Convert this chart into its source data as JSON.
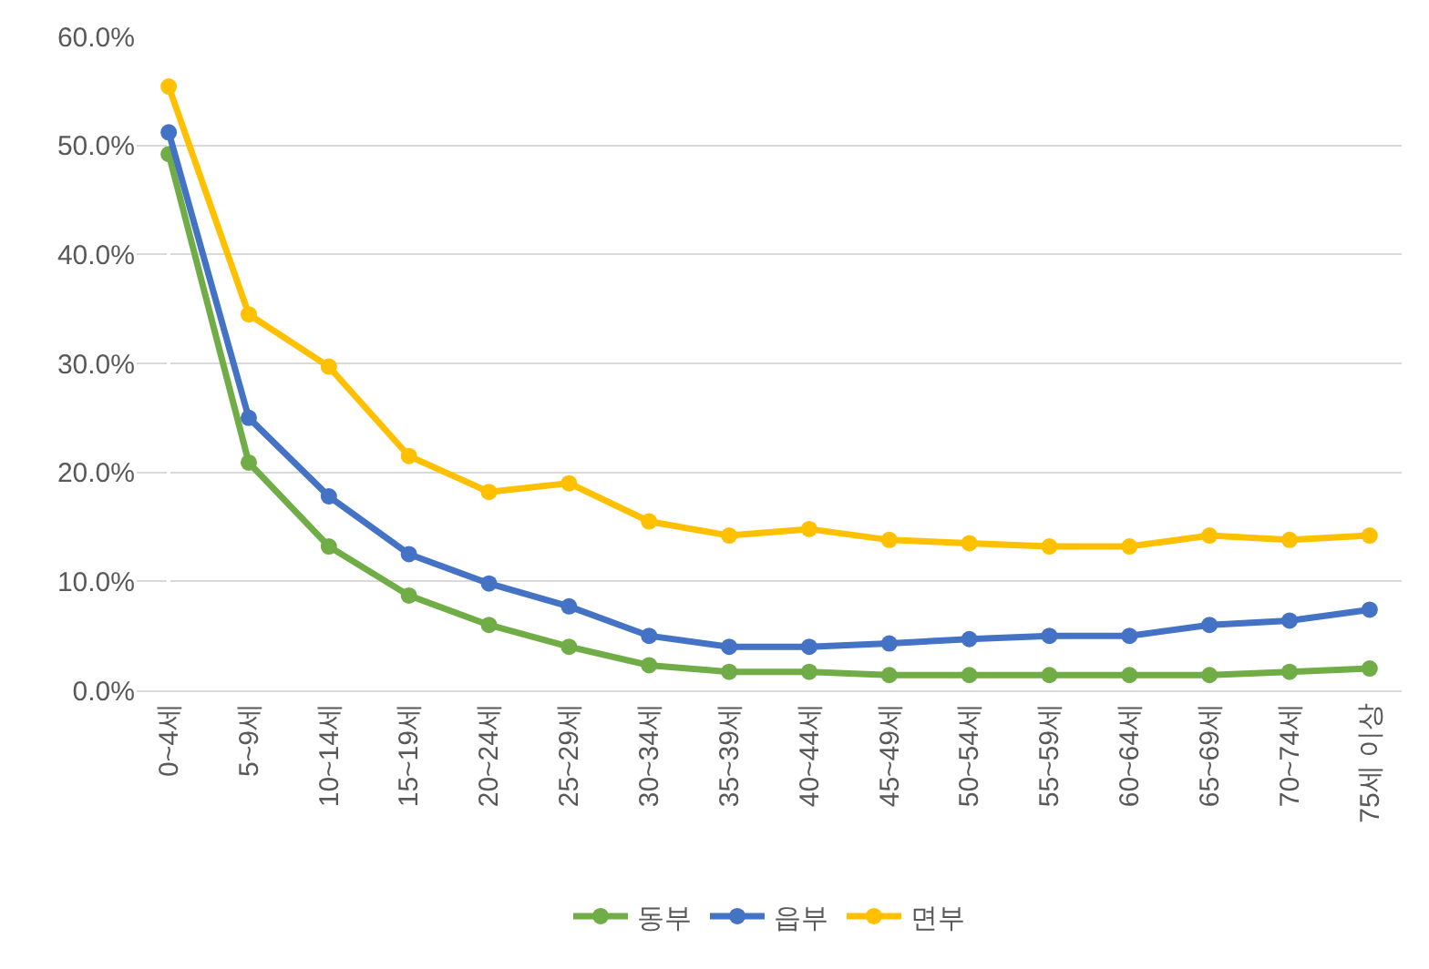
{
  "chart_data": {
    "type": "line",
    "categories": [
      "0~4세",
      "5~9세",
      "10~14세",
      "15~19세",
      "20~24세",
      "25~29세",
      "30~34세",
      "35~39세",
      "40~44세",
      "45~49세",
      "50~54세",
      "55~59세",
      "60~64세",
      "65~69세",
      "70~74세",
      "75세 이상"
    ],
    "series": [
      {
        "name": "동부",
        "color": "#70ad47",
        "values": [
          49.2,
          20.9,
          13.2,
          8.7,
          6.0,
          4.0,
          2.3,
          1.7,
          1.7,
          1.4,
          1.4,
          1.4,
          1.4,
          1.4,
          1.7,
          2.0
        ]
      },
      {
        "name": "읍부",
        "color": "#4472c4",
        "values": [
          51.2,
          25.0,
          17.8,
          12.5,
          9.8,
          7.7,
          5.0,
          4.0,
          4.0,
          4.3,
          4.7,
          5.0,
          5.0,
          6.0,
          6.4,
          7.4
        ]
      },
      {
        "name": "면부",
        "color": "#ffc000",
        "values": [
          55.4,
          34.5,
          29.7,
          21.5,
          18.2,
          19.0,
          15.5,
          14.2,
          14.8,
          13.8,
          13.5,
          13.2,
          13.2,
          14.2,
          13.8,
          14.2
        ]
      }
    ],
    "ylim": [
      0,
      60
    ],
    "yticks": [
      {
        "value": 0,
        "label": "0.0%"
      },
      {
        "value": 10,
        "label": "10.0%"
      },
      {
        "value": 20,
        "label": "20.0%"
      },
      {
        "value": 30,
        "label": "30.0%"
      },
      {
        "value": 40,
        "label": "40.0%"
      },
      {
        "value": 50,
        "label": "50.0%"
      },
      {
        "value": 60,
        "label": "60.0%"
      }
    ],
    "grid": "y",
    "legend": "bottom",
    "marker": "circle",
    "line_style": "solid"
  }
}
